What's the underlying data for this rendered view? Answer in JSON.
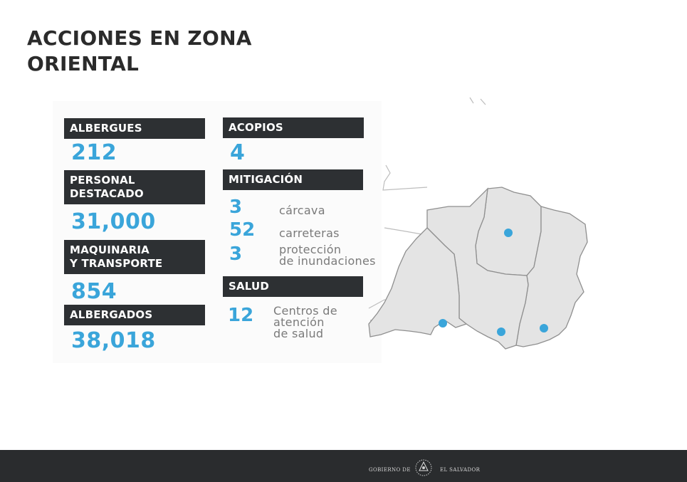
{
  "title": {
    "line1": "ACCIONES EN ZONA",
    "line2": "ORIENTAL"
  },
  "left_column": {
    "albergues": {
      "label": "ALBERGUES",
      "value": "212"
    },
    "personal": {
      "label_line1": "PERSONAL",
      "label_line2": "DESTACADO",
      "value": "31,000"
    },
    "maquinaria": {
      "label_line1": "MAQUINARIA",
      "label_line2": "Y TRANSPORTE",
      "value": "854"
    },
    "albergados": {
      "label": "ALBERGADOS",
      "value": "38,018"
    }
  },
  "right_column": {
    "acopios": {
      "label": "ACOPIOS",
      "value": "4"
    },
    "mitigacion": {
      "label": "MITIGACIÓN",
      "items": [
        {
          "value": "3",
          "text_line1": "cárcava",
          "text_line2": ""
        },
        {
          "value": "52",
          "text_line1": "carreteras",
          "text_line2": ""
        },
        {
          "value": "3",
          "text_line1": "protección",
          "text_line2": "de inundaciones"
        }
      ]
    },
    "salud": {
      "label": "SALUD",
      "value": "12",
      "text_lines": [
        "Centros de",
        "atención",
        "de salud"
      ]
    }
  },
  "map": {
    "region_color": "#e4e4e4",
    "marker_color": "#3aa5da"
  },
  "footer": {
    "left_text": "GOBIERNO DE",
    "right_text": "EL SALVADOR",
    "seal_icon": "coat-of-arms-icon"
  }
}
